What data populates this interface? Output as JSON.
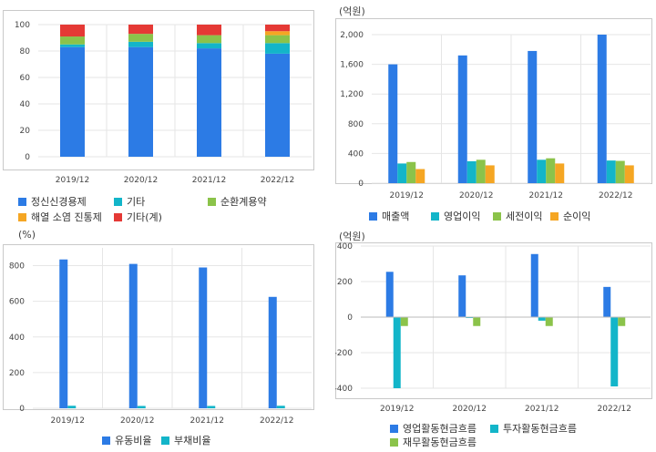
{
  "colors": {
    "blue": "#2c7be5",
    "teal": "#13b5c9",
    "green": "#8bc34a",
    "orange": "#f5a623",
    "red": "#e53935",
    "grid": "#e6e6e6",
    "frame": "#c9c9c9"
  },
  "panel1": {
    "unit": "",
    "legend": [
      "정신신경용제",
      "기타",
      "순환계용약",
      "해열 소염 진통제",
      "기타(계)"
    ]
  },
  "panel2": {
    "unit": "(억원)",
    "legend": [
      "매출액",
      "영업이익",
      "세전이익",
      "순이익"
    ]
  },
  "panel3": {
    "unit": "(%)",
    "legend": [
      "유동비율",
      "부채비율"
    ]
  },
  "panel4": {
    "unit": "(억원)",
    "legend": [
      "영업활동현금흐름",
      "투자활동현금흐름",
      "재무활동현금흐름"
    ]
  },
  "chart_data": [
    {
      "type": "bar",
      "stacked": true,
      "categories": [
        "2019/12",
        "2020/12",
        "2021/12",
        "2022/12"
      ],
      "ylim": [
        0,
        100
      ],
      "yticks": [
        0,
        20,
        40,
        60,
        80,
        100
      ],
      "grid": true,
      "series": [
        {
          "name": "정신신경용제",
          "color": "#2c7be5",
          "values": [
            83,
            83,
            82,
            78
          ]
        },
        {
          "name": "기타",
          "color": "#13b5c9",
          "values": [
            2,
            4,
            4,
            8
          ]
        },
        {
          "name": "순환계용약",
          "color": "#8bc34a",
          "values": [
            6,
            6,
            6,
            6
          ]
        },
        {
          "name": "해열 소염 진통제",
          "color": "#f5a623",
          "values": [
            0,
            0,
            0,
            3
          ]
        },
        {
          "name": "기타(계)",
          "color": "#e53935",
          "values": [
            9,
            7,
            8,
            5
          ]
        }
      ]
    },
    {
      "type": "bar",
      "categories": [
        "2019/12",
        "2020/12",
        "2021/12",
        "2022/12"
      ],
      "ylim": [
        0,
        2000
      ],
      "yticks": [
        0,
        400,
        800,
        1200,
        1600,
        2000
      ],
      "yticklabels": [
        "0",
        "400",
        "800",
        "1,200",
        "1,600",
        "2,000"
      ],
      "grid": true,
      "series": [
        {
          "name": "매출액",
          "color": "#2c7be5",
          "values": [
            1600,
            1720,
            1780,
            2000
          ]
        },
        {
          "name": "영업이익",
          "color": "#13b5c9",
          "values": [
            265,
            295,
            315,
            305
          ]
        },
        {
          "name": "세전이익",
          "color": "#8bc34a",
          "values": [
            285,
            315,
            335,
            300
          ]
        },
        {
          "name": "순이익",
          "color": "#f5a623",
          "values": [
            190,
            240,
            265,
            240
          ]
        }
      ]
    },
    {
      "type": "bar",
      "categories": [
        "2019/12",
        "2020/12",
        "2021/12",
        "2022/12"
      ],
      "ylim": [
        0,
        900
      ],
      "yticks": [
        0,
        200,
        400,
        600,
        800
      ],
      "grid": true,
      "series": [
        {
          "name": "유동비율",
          "color": "#2c7be5",
          "values": [
            835,
            810,
            790,
            625
          ]
        },
        {
          "name": "부채비율",
          "color": "#13b5c9",
          "values": [
            14,
            13,
            13,
            14
          ]
        }
      ]
    },
    {
      "type": "bar",
      "categories": [
        "2019/12",
        "2020/12",
        "2021/12",
        "2022/12"
      ],
      "ylim": [
        -400,
        400
      ],
      "yticks": [
        -400,
        -200,
        0,
        200,
        400
      ],
      "grid": true,
      "series": [
        {
          "name": "영업활동현금흐름",
          "color": "#2c7be5",
          "values": [
            255,
            235,
            355,
            170
          ]
        },
        {
          "name": "투자활동현금흐름",
          "color": "#13b5c9",
          "values": [
            -400,
            -5,
            -20,
            -390
          ]
        },
        {
          "name": "재무활동현금흐름",
          "color": "#8bc34a",
          "values": [
            -50,
            -50,
            -50,
            -50
          ]
        }
      ]
    }
  ]
}
